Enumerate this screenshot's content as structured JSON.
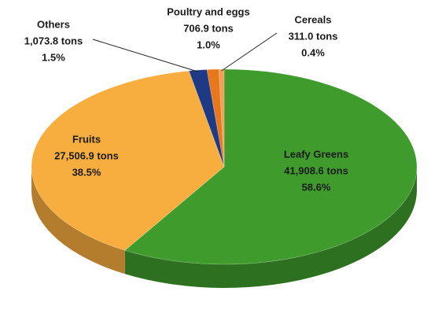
{
  "chart_data": {
    "type": "pie3d",
    "categories": [
      "Leafy Greens",
      "Fruits",
      "Others",
      "Poultry and eggs",
      "Cereals"
    ],
    "values": [
      41908.6,
      27506.9,
      1073.8,
      706.9,
      311.0
    ],
    "value_labels": [
      "41,908.6 tons",
      "27,506.9 tons",
      "1,073.8 tons",
      "706.9 tons",
      "311.0 tons"
    ],
    "percents": [
      58.6,
      38.5,
      1.5,
      1.0,
      0.4
    ],
    "percent_labels": [
      "58.6%",
      "38.5%",
      "1.5%",
      "1.0%",
      "0.4%"
    ],
    "colors": [
      "#3e9b2c",
      "#f8ae3e",
      "#1f3a85",
      "#e8781c",
      "#f2a057"
    ]
  }
}
